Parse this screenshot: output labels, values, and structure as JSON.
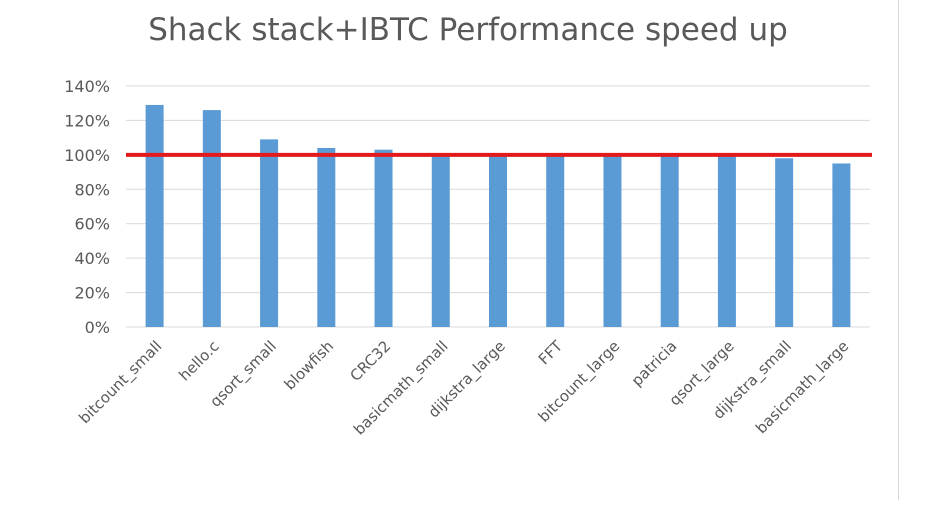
{
  "chart_data": {
    "type": "bar",
    "title": "Shack stack+IBTC Performance speed up",
    "xlabel": "",
    "ylabel": "",
    "categories": [
      "bitcount_small",
      "hello.c",
      "qsort_small",
      "blowfish",
      "CRC32",
      "basicmath_small",
      "dijkstra_large",
      "FFT",
      "bitcount_large",
      "patricia",
      "qsort_large",
      "dijkstra_small",
      "basicmath_large"
    ],
    "values": [
      129,
      126,
      109,
      104,
      103,
      101,
      101,
      101,
      101,
      101,
      101,
      98,
      95
    ],
    "value_format": "percent",
    "ylim": [
      0,
      140
    ],
    "yticks": [
      0,
      20,
      40,
      60,
      80,
      100,
      120,
      140
    ],
    "ytick_labels": [
      "0%",
      "20%",
      "40%",
      "60%",
      "80%",
      "100%",
      "120%",
      "140%"
    ],
    "grid": true,
    "legend": "none",
    "reference_line": {
      "value": 100,
      "color": "#e31a1c"
    },
    "colors": {
      "bar": "#5b9bd5",
      "grid": "#d9d9d9",
      "text": "#595959",
      "title": "#595959"
    }
  }
}
